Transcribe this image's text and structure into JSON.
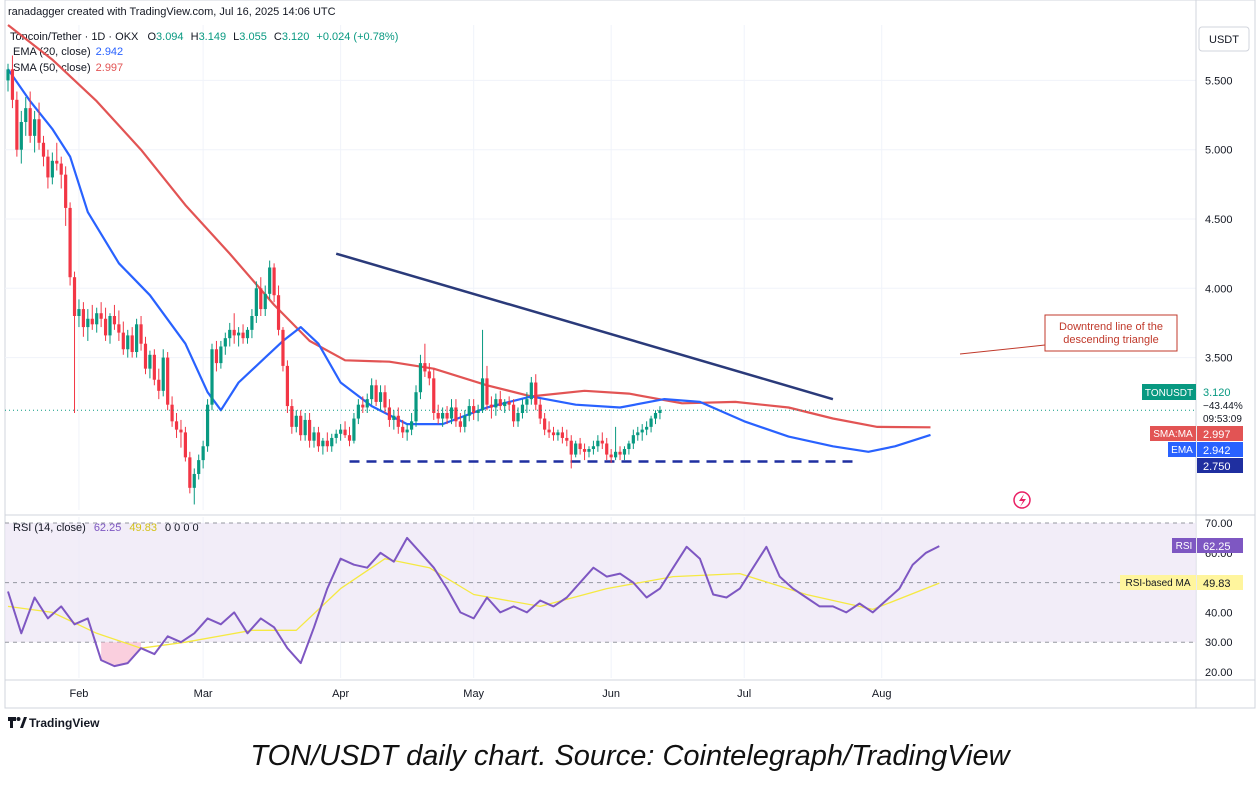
{
  "header": {
    "attribution": "ranadagger created with TradingView.com, Jul 16, 2025 14:06 UTC",
    "symbol_line": "Toncoin/Tether · 1D · OKX",
    "ohlc": {
      "o_label": "O",
      "o": "3.094",
      "h_label": "H",
      "h": "3.149",
      "l_label": "L",
      "l": "3.055",
      "c_label": "C",
      "c": "3.120",
      "change": "+0.024 (+0.78%)"
    },
    "ema_legend": {
      "label": "EMA (20, close)",
      "value": "2.942"
    },
    "sma_legend": {
      "label": "SMA (50, close)",
      "value": "2.997"
    }
  },
  "colors": {
    "up": "#089981",
    "down": "#f23645",
    "ema": "#2962ff",
    "sma": "#e25454",
    "rsi": "#7e57c2",
    "rsi_ma": "#f5e942",
    "trendline": "#2a3a7a",
    "support": "#1f2fa0"
  },
  "currency_button": "USDT",
  "annotation": {
    "line1": "Downtrend line of the",
    "line2": "descending triangle"
  },
  "price_tags": {
    "last": {
      "symbol": "TONUSDT",
      "price": "3.120",
      "change": "−43.44%",
      "countdown": "09:53:09"
    },
    "sma": {
      "label": "SMA:MA",
      "value": "2.997"
    },
    "ema": {
      "label": "EMA",
      "value": "2.942"
    },
    "support": {
      "value": "2.750"
    }
  },
  "rsi_panel": {
    "legend": "RSI (14, close)",
    "value": "62.25",
    "ma_value": "49.83",
    "extra": "0 0 0 0",
    "tag_rsi_label": "RSI",
    "tag_rsi_value": "62.25",
    "tag_ma_label": "RSI-based MA",
    "tag_ma_value": "49.83"
  },
  "branding": "TradingView",
  "caption": "TON/USDT daily chart. Source: Cointelegraph/TradingView",
  "chart_data": {
    "type": "candlestick",
    "price_axis_ticks": [
      "5.500",
      "5.000",
      "4.500",
      "4.000",
      "3.500"
    ],
    "rsi_axis_ticks": [
      "70.00",
      "60.00",
      "50.00",
      "40.00",
      "30.00",
      "20.00"
    ],
    "time_axis_labels": [
      "Feb",
      "Mar",
      "Apr",
      "May",
      "Jun",
      "Jul",
      "Aug"
    ],
    "price_range": [
      2.4,
      5.9
    ],
    "rsi_range": [
      18,
      72
    ],
    "rsi_bands": [
      30,
      70
    ],
    "candles_start_date": "2025-01-16",
    "candles_end_date": "2025-07-16",
    "candles": [
      [
        5.5,
        5.62,
        5.42,
        5.58
      ],
      [
        5.58,
        5.68,
        5.3,
        5.36
      ],
      [
        5.36,
        5.42,
        4.95,
        5.0
      ],
      [
        5.0,
        5.28,
        4.9,
        5.2
      ],
      [
        5.2,
        5.38,
        5.1,
        5.3
      ],
      [
        5.3,
        5.42,
        5.05,
        5.1
      ],
      [
        5.1,
        5.28,
        4.98,
        5.22
      ],
      [
        5.22,
        5.34,
        5.0,
        5.05
      ],
      [
        5.05,
        5.1,
        4.88,
        4.95
      ],
      [
        4.95,
        5.0,
        4.72,
        4.8
      ],
      [
        4.8,
        4.98,
        4.75,
        4.92
      ],
      [
        4.92,
        5.05,
        4.85,
        4.9
      ],
      [
        4.9,
        4.95,
        4.72,
        4.82
      ],
      [
        4.82,
        4.88,
        4.45,
        4.58
      ],
      [
        4.58,
        4.62,
        4.02,
        4.08
      ],
      [
        4.08,
        4.12,
        3.1,
        3.8
      ],
      [
        3.8,
        3.92,
        3.72,
        3.85
      ],
      [
        3.85,
        3.9,
        3.65,
        3.72
      ],
      [
        3.72,
        3.85,
        3.62,
        3.78
      ],
      [
        3.78,
        3.88,
        3.7,
        3.74
      ],
      [
        3.74,
        3.86,
        3.68,
        3.82
      ],
      [
        3.82,
        3.9,
        3.72,
        3.78
      ],
      [
        3.78,
        3.86,
        3.62,
        3.66
      ],
      [
        3.66,
        3.82,
        3.6,
        3.8
      ],
      [
        3.8,
        3.88,
        3.7,
        3.74
      ],
      [
        3.74,
        3.84,
        3.62,
        3.68
      ],
      [
        3.68,
        3.76,
        3.52,
        3.56
      ],
      [
        3.56,
        3.7,
        3.5,
        3.66
      ],
      [
        3.66,
        3.72,
        3.5,
        3.54
      ],
      [
        3.54,
        3.78,
        3.5,
        3.74
      ],
      [
        3.74,
        3.8,
        3.55,
        3.6
      ],
      [
        3.6,
        3.65,
        3.38,
        3.42
      ],
      [
        3.42,
        3.55,
        3.35,
        3.52
      ],
      [
        3.52,
        3.56,
        3.3,
        3.34
      ],
      [
        3.34,
        3.42,
        3.2,
        3.26
      ],
      [
        3.26,
        3.56,
        3.22,
        3.5
      ],
      [
        3.5,
        3.54,
        3.12,
        3.16
      ],
      [
        3.16,
        3.22,
        3.0,
        3.04
      ],
      [
        3.04,
        3.1,
        2.92,
        2.98
      ],
      [
        2.98,
        3.05,
        2.85,
        2.96
      ],
      [
        2.96,
        3.0,
        2.75,
        2.78
      ],
      [
        2.78,
        2.82,
        2.52,
        2.56
      ],
      [
        2.56,
        2.7,
        2.44,
        2.66
      ],
      [
        2.66,
        2.8,
        2.62,
        2.76
      ],
      [
        2.76,
        2.9,
        2.7,
        2.86
      ],
      [
        2.86,
        3.2,
        2.82,
        3.16
      ],
      [
        3.16,
        3.6,
        3.12,
        3.56
      ],
      [
        3.56,
        3.62,
        3.4,
        3.46
      ],
      [
        3.46,
        3.62,
        3.42,
        3.58
      ],
      [
        3.58,
        3.68,
        3.52,
        3.64
      ],
      [
        3.64,
        3.75,
        3.58,
        3.7
      ],
      [
        3.7,
        3.82,
        3.6,
        3.66
      ],
      [
        3.66,
        3.72,
        3.58,
        3.68
      ],
      [
        3.68,
        3.74,
        3.6,
        3.64
      ],
      [
        3.64,
        3.72,
        3.6,
        3.7
      ],
      [
        3.7,
        3.85,
        3.64,
        3.8
      ],
      [
        3.8,
        4.05,
        3.75,
        4.0
      ],
      [
        4.0,
        4.08,
        3.8,
        3.85
      ],
      [
        3.85,
        4.02,
        3.8,
        3.96
      ],
      [
        3.96,
        4.2,
        3.92,
        4.15
      ],
      [
        4.15,
        4.18,
        3.9,
        3.95
      ],
      [
        3.95,
        4.02,
        3.66,
        3.7
      ],
      [
        3.7,
        3.72,
        3.4,
        3.44
      ],
      [
        3.44,
        3.48,
        3.1,
        3.15
      ],
      [
        3.15,
        3.2,
        2.95,
        3.0
      ],
      [
        3.0,
        3.12,
        2.96,
        3.08
      ],
      [
        3.08,
        3.12,
        2.9,
        2.94
      ],
      [
        2.94,
        3.1,
        2.9,
        3.05
      ],
      [
        3.05,
        3.1,
        2.85,
        2.9
      ],
      [
        2.9,
        3.0,
        2.85,
        2.96
      ],
      [
        2.96,
        3.0,
        2.82,
        2.86
      ],
      [
        2.86,
        2.92,
        2.8,
        2.9
      ],
      [
        2.9,
        2.96,
        2.82,
        2.86
      ],
      [
        2.86,
        2.95,
        2.82,
        2.92
      ],
      [
        2.92,
        2.98,
        2.88,
        2.95
      ],
      [
        2.95,
        3.02,
        2.9,
        2.98
      ],
      [
        2.98,
        3.04,
        2.92,
        2.94
      ],
      [
        2.94,
        3.0,
        2.86,
        2.9
      ],
      [
        2.9,
        3.1,
        2.88,
        3.06
      ],
      [
        3.06,
        3.2,
        3.02,
        3.16
      ],
      [
        3.16,
        3.22,
        3.1,
        3.14
      ],
      [
        3.14,
        3.24,
        3.1,
        3.2
      ],
      [
        3.2,
        3.35,
        3.16,
        3.3
      ],
      [
        3.3,
        3.34,
        3.15,
        3.18
      ],
      [
        3.18,
        3.3,
        3.12,
        3.25
      ],
      [
        3.25,
        3.3,
        3.1,
        3.14
      ],
      [
        3.14,
        3.2,
        3.0,
        3.05
      ],
      [
        3.05,
        3.12,
        2.98,
        3.08
      ],
      [
        3.08,
        3.14,
        2.95,
        3.0
      ],
      [
        3.0,
        3.05,
        2.92,
        2.96
      ],
      [
        2.96,
        3.02,
        2.9,
        2.98
      ],
      [
        2.98,
        3.1,
        2.94,
        3.04
      ],
      [
        3.04,
        3.3,
        3.0,
        3.25
      ],
      [
        3.25,
        3.52,
        3.2,
        3.46
      ],
      [
        3.46,
        3.6,
        3.36,
        3.4
      ],
      [
        3.4,
        3.46,
        3.3,
        3.35
      ],
      [
        3.35,
        3.42,
        3.05,
        3.1
      ],
      [
        3.1,
        3.16,
        3.02,
        3.06
      ],
      [
        3.06,
        3.14,
        3.0,
        3.1
      ],
      [
        3.1,
        3.15,
        3.02,
        3.06
      ],
      [
        3.06,
        3.2,
        3.02,
        3.14
      ],
      [
        3.14,
        3.2,
        3.0,
        3.04
      ],
      [
        3.04,
        3.1,
        2.96,
        3.0
      ],
      [
        3.0,
        3.12,
        2.96,
        3.08
      ],
      [
        3.08,
        3.2,
        3.04,
        3.15
      ],
      [
        3.15,
        3.2,
        3.05,
        3.1
      ],
      [
        3.1,
        3.16,
        3.04,
        3.12
      ],
      [
        3.12,
        3.7,
        3.1,
        3.35
      ],
      [
        3.35,
        3.44,
        3.12,
        3.16
      ],
      [
        3.16,
        3.22,
        3.06,
        3.14
      ],
      [
        3.14,
        3.24,
        3.08,
        3.2
      ],
      [
        3.2,
        3.26,
        3.12,
        3.15
      ],
      [
        3.15,
        3.2,
        3.1,
        3.18
      ],
      [
        3.18,
        3.22,
        3.12,
        3.16
      ],
      [
        3.16,
        3.2,
        3.0,
        3.04
      ],
      [
        3.04,
        3.14,
        3.0,
        3.1
      ],
      [
        3.1,
        3.2,
        3.06,
        3.16
      ],
      [
        3.16,
        3.25,
        3.1,
        3.2
      ],
      [
        3.2,
        3.36,
        3.16,
        3.32
      ],
      [
        3.32,
        3.38,
        3.12,
        3.16
      ],
      [
        3.16,
        3.2,
        3.02,
        3.06
      ],
      [
        3.06,
        3.1,
        2.94,
        2.98
      ],
      [
        2.98,
        3.04,
        2.92,
        2.96
      ],
      [
        2.96,
        3.0,
        2.9,
        2.94
      ],
      [
        2.94,
        2.98,
        2.9,
        2.96
      ],
      [
        2.96,
        3.0,
        2.88,
        2.92
      ],
      [
        2.92,
        2.98,
        2.86,
        2.9
      ],
      [
        2.9,
        2.94,
        2.7,
        2.8
      ],
      [
        2.8,
        2.9,
        2.78,
        2.88
      ],
      [
        2.88,
        2.92,
        2.8,
        2.84
      ],
      [
        2.84,
        2.88,
        2.76,
        2.82
      ],
      [
        2.82,
        2.86,
        2.78,
        2.84
      ],
      [
        2.84,
        2.9,
        2.8,
        2.86
      ],
      [
        2.86,
        2.94,
        2.82,
        2.9
      ],
      [
        2.9,
        2.96,
        2.84,
        2.88
      ],
      [
        2.88,
        2.92,
        2.76,
        2.8
      ],
      [
        2.8,
        2.84,
        2.74,
        2.78
      ],
      [
        2.78,
        3.0,
        2.76,
        2.82
      ],
      [
        2.82,
        2.86,
        2.76,
        2.8
      ],
      [
        2.8,
        2.86,
        2.76,
        2.84
      ],
      [
        2.84,
        2.9,
        2.8,
        2.88
      ],
      [
        2.88,
        2.98,
        2.84,
        2.94
      ],
      [
        2.94,
        3.0,
        2.9,
        2.96
      ],
      [
        2.96,
        3.02,
        2.9,
        2.98
      ],
      [
        2.98,
        3.04,
        2.94,
        3.0
      ],
      [
        3.0,
        3.08,
        2.96,
        3.06
      ],
      [
        3.06,
        3.12,
        3.02,
        3.1
      ],
      [
        3.1,
        3.149,
        3.055,
        3.12
      ]
    ],
    "ema_20": [
      [
        0,
        5.58
      ],
      [
        5,
        5.35
      ],
      [
        10,
        5.15
      ],
      [
        14,
        4.95
      ],
      [
        18,
        4.55
      ],
      [
        25,
        4.18
      ],
      [
        32,
        3.95
      ],
      [
        40,
        3.6
      ],
      [
        45,
        3.25
      ],
      [
        48,
        3.12
      ],
      [
        52,
        3.32
      ],
      [
        58,
        3.5
      ],
      [
        62,
        3.62
      ],
      [
        66,
        3.72
      ],
      [
        70,
        3.6
      ],
      [
        75,
        3.32
      ],
      [
        82,
        3.15
      ],
      [
        90,
        3.02
      ],
      [
        98,
        3.02
      ],
      [
        108,
        3.14
      ],
      [
        118,
        3.22
      ],
      [
        128,
        3.16
      ],
      [
        138,
        3.14
      ],
      [
        148,
        3.2
      ],
      [
        156,
        3.18
      ],
      [
        166,
        3.04
      ],
      [
        176,
        2.93
      ],
      [
        186,
        2.86
      ],
      [
        194,
        2.82
      ],
      [
        200,
        2.86
      ],
      [
        208,
        2.942
      ]
    ],
    "sma_50": [
      [
        0,
        5.9
      ],
      [
        10,
        5.65
      ],
      [
        20,
        5.35
      ],
      [
        30,
        5.0
      ],
      [
        40,
        4.6
      ],
      [
        50,
        4.25
      ],
      [
        60,
        3.88
      ],
      [
        68,
        3.62
      ],
      [
        76,
        3.48
      ],
      [
        86,
        3.47
      ],
      [
        96,
        3.42
      ],
      [
        108,
        3.3
      ],
      [
        118,
        3.22
      ],
      [
        130,
        3.26
      ],
      [
        140,
        3.24
      ],
      [
        152,
        3.17
      ],
      [
        164,
        3.18
      ],
      [
        176,
        3.14
      ],
      [
        186,
        3.06
      ],
      [
        196,
        3.0
      ],
      [
        208,
        2.997
      ]
    ],
    "rsi": [
      [
        0,
        47
      ],
      [
        3,
        33
      ],
      [
        6,
        45
      ],
      [
        9,
        38
      ],
      [
        12,
        42
      ],
      [
        15,
        36
      ],
      [
        18,
        38
      ],
      [
        21,
        24
      ],
      [
        24,
        22
      ],
      [
        27,
        23
      ],
      [
        30,
        28
      ],
      [
        33,
        26
      ],
      [
        36,
        32
      ],
      [
        39,
        30
      ],
      [
        42,
        33
      ],
      [
        45,
        38
      ],
      [
        48,
        36
      ],
      [
        51,
        40
      ],
      [
        54,
        33
      ],
      [
        57,
        38
      ],
      [
        60,
        35
      ],
      [
        63,
        28
      ],
      [
        66,
        23
      ],
      [
        69,
        35
      ],
      [
        72,
        48
      ],
      [
        75,
        58
      ],
      [
        78,
        56
      ],
      [
        81,
        55
      ],
      [
        84,
        60
      ],
      [
        87,
        57
      ],
      [
        90,
        65
      ],
      [
        93,
        60
      ],
      [
        96,
        55
      ],
      [
        99,
        48
      ],
      [
        102,
        40
      ],
      [
        105,
        38
      ],
      [
        108,
        45
      ],
      [
        111,
        40
      ],
      [
        114,
        42
      ],
      [
        117,
        40
      ],
      [
        120,
        44
      ],
      [
        123,
        42
      ],
      [
        126,
        45
      ],
      [
        129,
        50
      ],
      [
        132,
        55
      ],
      [
        135,
        52
      ],
      [
        138,
        53
      ],
      [
        141,
        50
      ],
      [
        144,
        45
      ],
      [
        147,
        48
      ],
      [
        150,
        55
      ],
      [
        153,
        62
      ],
      [
        156,
        58
      ],
      [
        159,
        46
      ],
      [
        162,
        45
      ],
      [
        165,
        48
      ],
      [
        168,
        55
      ],
      [
        171,
        62
      ],
      [
        174,
        52
      ],
      [
        177,
        48
      ],
      [
        180,
        45
      ],
      [
        183,
        42
      ],
      [
        186,
        42
      ],
      [
        189,
        40
      ],
      [
        192,
        43
      ],
      [
        195,
        40
      ],
      [
        198,
        44
      ],
      [
        201,
        48
      ],
      [
        204,
        56
      ],
      [
        207,
        60
      ],
      [
        210,
        62.25
      ]
    ],
    "rsi_ma": [
      [
        0,
        42
      ],
      [
        10,
        40
      ],
      [
        20,
        33
      ],
      [
        30,
        28
      ],
      [
        40,
        30
      ],
      [
        55,
        34
      ],
      [
        65,
        34
      ],
      [
        75,
        48
      ],
      [
        85,
        58
      ],
      [
        95,
        55
      ],
      [
        105,
        46
      ],
      [
        120,
        42
      ],
      [
        135,
        48
      ],
      [
        150,
        52
      ],
      [
        165,
        53
      ],
      [
        180,
        46
      ],
      [
        195,
        41
      ],
      [
        210,
        49.83
      ]
    ],
    "downtrend_line": {
      "from": [
        "2025-03-31",
        4.25
      ],
      "to": [
        "2025-07-21",
        3.2
      ]
    },
    "support_line": {
      "from": [
        "2025-04-03",
        2.75
      ],
      "to": [
        "2025-07-26",
        2.75
      ]
    }
  }
}
